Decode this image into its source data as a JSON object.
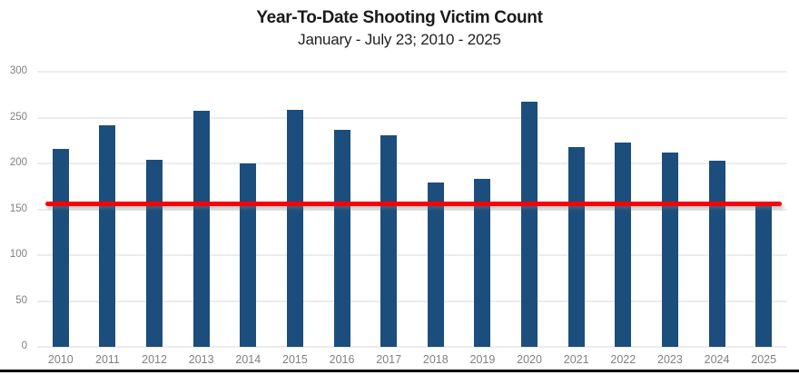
{
  "chart_data": {
    "type": "bar",
    "title": "Year-To-Date Shooting Victim Count",
    "subtitle": "January - July 23; 2010 - 2025",
    "categories": [
      "2010",
      "2011",
      "2012",
      "2013",
      "2014",
      "2015",
      "2016",
      "2017",
      "2018",
      "2019",
      "2020",
      "2021",
      "2022",
      "2023",
      "2024",
      "2025"
    ],
    "values": [
      216,
      242,
      204,
      257,
      200,
      258,
      237,
      231,
      179,
      183,
      267,
      218,
      223,
      212,
      203,
      155
    ],
    "xlabel": "",
    "ylabel": "",
    "ylim": [
      0,
      300
    ],
    "yticks": [
      0,
      50,
      100,
      150,
      200,
      250,
      300
    ],
    "grid": "horizontal",
    "legend": "none",
    "reference_line": {
      "value": 155,
      "style": "solid-rounded"
    }
  },
  "colors": {
    "bar": "#1b4e7c",
    "reference_line": "#f60208",
    "gridline": "#dadada",
    "axis_label": "#808080",
    "title_text": "#1a1a1a",
    "bottom_rule": "#000000",
    "background": "#ffffff"
  }
}
